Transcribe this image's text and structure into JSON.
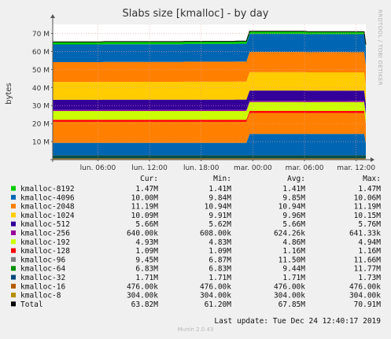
{
  "title": "Slabs size [kmalloc] - by day",
  "side_note": "RRDTOOL / TOBI OETIKER",
  "footer": "Munin 2.0.43",
  "chart_data": {
    "type": "area",
    "title": "Slabs size [kmalloc] - by day",
    "ylabel": "bytes",
    "ylim": [
      0,
      75000000
    ],
    "yticks": [
      10000000,
      20000000,
      30000000,
      40000000,
      50000000,
      60000000,
      70000000
    ],
    "ytick_labels": [
      "10 M",
      "20 M",
      "30 M",
      "40 M",
      "50 M",
      "60 M",
      "70 M"
    ],
    "xticks": [
      "lun. 06:00",
      "lun. 12:00",
      "lun. 18:00",
      "mar. 00:00",
      "mar. 06:00",
      "mar. 12:00"
    ],
    "grid": true,
    "x": [
      0,
      15,
      16,
      40,
      41,
      56,
      57,
      60,
      61,
      78,
      79,
      85,
      86,
      91,
      92,
      96,
      96.5,
      97
    ],
    "series": [
      {
        "name": "kmalloc-8",
        "color": "#cc7a00",
        "values": [
          304000,
          304000,
          304000,
          304000,
          304000,
          304000,
          304000,
          304000,
          304000,
          304000,
          304000,
          304000,
          304000,
          304000,
          304000,
          304000,
          304000,
          304000
        ]
      },
      {
        "name": "kmalloc-16",
        "color": "#8f6300",
        "values": [
          476000,
          476000,
          476000,
          476000,
          476000,
          476000,
          476000,
          476000,
          476000,
          476000,
          476000,
          476000,
          476000,
          476000,
          476000,
          476000,
          476000,
          476000
        ]
      },
      {
        "name": "kmalloc-32",
        "color": "#004d4d",
        "values": [
          1710000,
          1710000,
          1710000,
          1710000,
          1710000,
          1710000,
          1710000,
          1710000,
          1710000,
          1710000,
          1710000,
          1730000,
          1730000,
          1730000,
          1710000,
          1710000,
          1710000,
          1710000
        ]
      },
      {
        "name": "kmalloc-64",
        "color": "#0066b3",
        "values": [
          6830000,
          6830000,
          6830000,
          6830000,
          6830000,
          6830000,
          6830000,
          6830000,
          11770000,
          11770000,
          11770000,
          11770000,
          11770000,
          11770000,
          11770000,
          11770000,
          11770000,
          6830000
        ]
      },
      {
        "name": "kmalloc-96",
        "color": "#ff8000",
        "values": [
          11660000,
          11660000,
          11660000,
          11660000,
          11660000,
          11660000,
          11660000,
          11660000,
          11660000,
          11660000,
          11600000,
          11600000,
          11600000,
          11600000,
          11600000,
          11600000,
          11600000,
          9450000
        ]
      },
      {
        "name": "kmalloc-128",
        "color": "#ff0000",
        "values": [
          1160000,
          1160000,
          1160000,
          1160000,
          1160000,
          1160000,
          1160000,
          1160000,
          1160000,
          1160000,
          1160000,
          1160000,
          1160000,
          1160000,
          1160000,
          1160000,
          1160000,
          1090000
        ]
      },
      {
        "name": "kmalloc-192",
        "color": "#ccff00",
        "values": [
          4830000,
          4830000,
          4830000,
          4830000,
          4830000,
          4830000,
          4830000,
          4830000,
          4860000,
          4860000,
          4860000,
          4860000,
          4860000,
          4860000,
          4930000,
          4930000,
          4930000,
          4930000
        ]
      },
      {
        "name": "kmalloc-256",
        "color": "#990099",
        "values": [
          608000,
          608000,
          620000,
          620000,
          624000,
          624000,
          630000,
          630000,
          641000,
          641000,
          641000,
          641000,
          641000,
          641000,
          641000,
          641000,
          641000,
          640000
        ]
      },
      {
        "name": "kmalloc-512",
        "color": "#330099",
        "values": [
          5620000,
          5620000,
          5640000,
          5640000,
          5660000,
          5660000,
          5700000,
          5700000,
          5760000,
          5760000,
          5760000,
          5760000,
          5760000,
          5760000,
          5700000,
          5700000,
          5680000,
          5660000
        ]
      },
      {
        "name": "kmalloc-1024",
        "color": "#ffcc00",
        "values": [
          9910000,
          9910000,
          9950000,
          9950000,
          9960000,
          9960000,
          9980000,
          9980000,
          10150000,
          10150000,
          10100000,
          10100000,
          10100000,
          10100000,
          10090000,
          10090000,
          10090000,
          10090000
        ]
      },
      {
        "name": "kmalloc-2048",
        "color": "#ff7f00",
        "values": [
          10940000,
          10940000,
          11000000,
          11000000,
          11100000,
          11100000,
          11150000,
          11150000,
          11190000,
          11190000,
          11190000,
          11190000,
          11190000,
          11190000,
          11190000,
          11190000,
          11190000,
          11190000
        ]
      },
      {
        "name": "kmalloc-4096",
        "color": "#0066b3",
        "values": [
          9840000,
          9840000,
          9850000,
          9850000,
          9850000,
          9850000,
          9860000,
          9860000,
          10060000,
          10060000,
          10000000,
          10000000,
          10000000,
          10000000,
          10000000,
          10000000,
          10000000,
          10000000
        ]
      },
      {
        "name": "kmalloc-8192",
        "color": "#00cc00",
        "values": [
          1410000,
          1410000,
          1410000,
          1410000,
          1410000,
          1410000,
          1410000,
          1410000,
          1410000,
          1410000,
          1410000,
          1410000,
          1410000,
          1410000,
          1410000,
          1410000,
          1410000,
          1470000
        ]
      }
    ],
    "legend": {
      "columns": [
        "Cur:",
        "Min:",
        "Avg:",
        "Max:"
      ],
      "rows": [
        {
          "name": "kmalloc-8192",
          "color": "#00cc00",
          "cur": "1.47M",
          "min": "1.41M",
          "avg": "1.41M",
          "max": "1.47M"
        },
        {
          "name": "kmalloc-4096",
          "color": "#0066b3",
          "cur": "10.00M",
          "min": "9.84M",
          "avg": "9.85M",
          "max": "10.06M"
        },
        {
          "name": "kmalloc-2048",
          "color": "#ff7f00",
          "cur": "11.19M",
          "min": "10.94M",
          "avg": "10.94M",
          "max": "11.19M"
        },
        {
          "name": "kmalloc-1024",
          "color": "#ffcc00",
          "cur": "10.09M",
          "min": "9.91M",
          "avg": "9.96M",
          "max": "10.15M"
        },
        {
          "name": "kmalloc-512",
          "color": "#330099",
          "cur": "5.66M",
          "min": "5.62M",
          "avg": "5.66M",
          "max": "5.76M"
        },
        {
          "name": "kmalloc-256",
          "color": "#990099",
          "cur": "640.00k",
          "min": "608.00k",
          "avg": "624.26k",
          "max": "641.33k"
        },
        {
          "name": "kmalloc-192",
          "color": "#ccff00",
          "cur": "4.93M",
          "min": "4.83M",
          "avg": "4.86M",
          "max": "4.94M"
        },
        {
          "name": "kmalloc-128",
          "color": "#ff0000",
          "cur": "1.09M",
          "min": "1.09M",
          "avg": "1.16M",
          "max": "1.16M"
        },
        {
          "name": "kmalloc-96",
          "color": "#808080",
          "cur": "9.45M",
          "min": "6.87M",
          "avg": "11.50M",
          "max": "11.66M"
        },
        {
          "name": "kmalloc-64",
          "color": "#008f00",
          "cur": "6.83M",
          "min": "6.83M",
          "avg": "9.44M",
          "max": "11.77M"
        },
        {
          "name": "kmalloc-32",
          "color": "#00487d",
          "cur": "1.71M",
          "min": "1.71M",
          "avg": "1.71M",
          "max": "1.73M"
        },
        {
          "name": "kmalloc-16",
          "color": "#b35a00",
          "cur": "476.00k",
          "min": "476.00k",
          "avg": "476.00k",
          "max": "476.00k"
        },
        {
          "name": "kmalloc-8",
          "color": "#b38f00",
          "cur": "304.00k",
          "min": "304.00k",
          "avg": "304.00k",
          "max": "304.00k"
        },
        {
          "name": "Total",
          "color": "#000000",
          "cur": "63.82M",
          "min": "61.20M",
          "avg": "67.85M",
          "max": "70.91M"
        }
      ]
    },
    "last_update": "Last update: Tue Dec 24 12:40:17 2019"
  }
}
